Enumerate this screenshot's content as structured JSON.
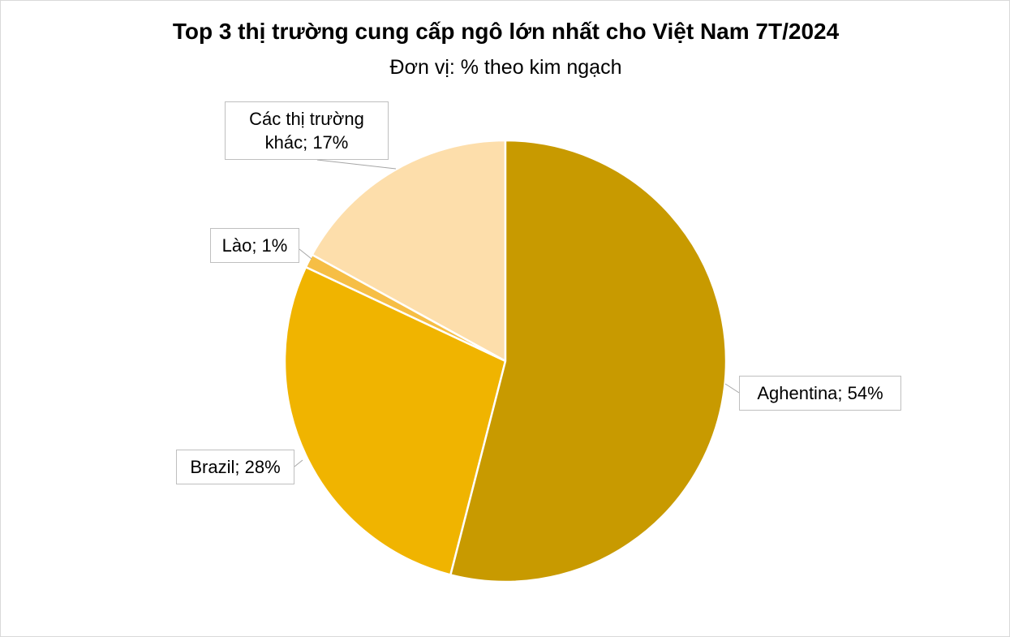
{
  "chart_data": {
    "type": "pie",
    "title": "Top 3 thị trường cung cấp ngô lớn nhất cho Việt Nam 7T/2024",
    "subtitle": "Đơn vị: % theo kim ngạch",
    "values": [
      54,
      28,
      1,
      17
    ],
    "value_labels": [
      "Aghentina; 54%",
      "Brazil; 28%",
      "Lào; 1%",
      "Các thị trường khác; 17%"
    ],
    "colors": [
      "#C89A00",
      "#F0B400",
      "#F6BE45",
      "#FDDEAB"
    ]
  }
}
